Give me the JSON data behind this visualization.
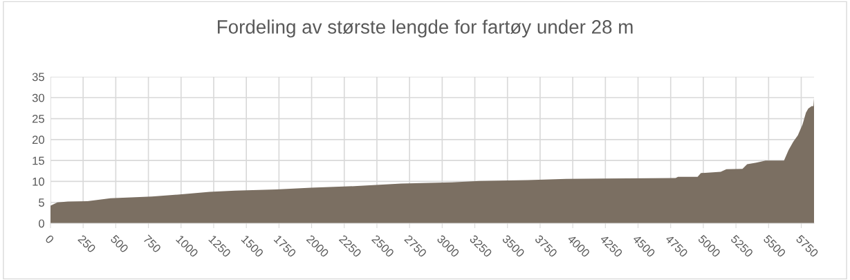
{
  "chart_data": {
    "type": "area",
    "title": "Fordeling av største lengde for fartøy under 28 m",
    "series": [
      {
        "color": "#7b6f62",
        "x": [
          0,
          53,
          133,
          283,
          460,
          777,
          990,
          1219,
          1413,
          1731,
          1996,
          2350,
          2686,
          3074,
          3285,
          3656,
          3949,
          4240,
          4788,
          4806,
          4956,
          4982,
          5133,
          5177,
          5300,
          5336,
          5406,
          5477,
          5618,
          5653,
          5689,
          5724,
          5760,
          5786,
          5804,
          5830,
          5843,
          5848
        ],
        "values": [
          4.2,
          5.0,
          5.2,
          5.3,
          6.0,
          6.4,
          6.9,
          7.5,
          7.8,
          8.1,
          8.5,
          8.9,
          9.5,
          9.8,
          10.1,
          10.3,
          10.6,
          10.7,
          10.8,
          11.1,
          11.1,
          12.0,
          12.3,
          12.9,
          13.0,
          14.1,
          14.5,
          15.0,
          15.0,
          17.5,
          19.5,
          21.0,
          23.6,
          26.4,
          27.4,
          28.0,
          28.0,
          29.9
        ]
      }
    ],
    "xlim": [
      0,
      5848
    ],
    "ylim": [
      0,
      35
    ],
    "xticks": [
      0,
      250,
      500,
      750,
      1000,
      1250,
      1500,
      1750,
      2000,
      2250,
      2500,
      2750,
      3000,
      3250,
      3500,
      3750,
      4000,
      4250,
      4500,
      4750,
      5000,
      5250,
      5500,
      5750
    ],
    "yticks": [
      0,
      5,
      10,
      15,
      20,
      25,
      30,
      35
    ],
    "grid": true,
    "legend": false
  }
}
